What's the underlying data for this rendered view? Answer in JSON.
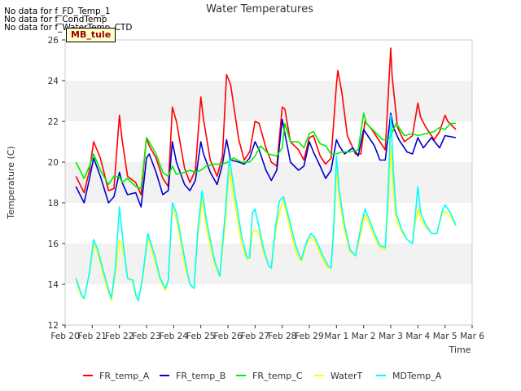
{
  "chart_data": {
    "type": "line",
    "title": "Water Temperatures",
    "xlabel": "Time",
    "ylabel": "Temperature (C)",
    "ylim": [
      12,
      26
    ],
    "xlim": [
      0,
      15
    ],
    "grid": "horizontal bands",
    "legend_position": "bottom",
    "x_ticks": [
      {
        "x": 0,
        "label": "Feb 20"
      },
      {
        "x": 1,
        "label": "Feb 21"
      },
      {
        "x": 2,
        "label": "Feb 22"
      },
      {
        "x": 3,
        "label": "Feb 23"
      },
      {
        "x": 4,
        "label": "Feb 24"
      },
      {
        "x": 5,
        "label": "Feb 25"
      },
      {
        "x": 6,
        "label": "Feb 26"
      },
      {
        "x": 7,
        "label": "Feb 27"
      },
      {
        "x": 8,
        "label": "Feb 28"
      },
      {
        "x": 9,
        "label": "Feb 29"
      },
      {
        "x": 10,
        "label": "Mar 1"
      },
      {
        "x": 11,
        "label": "Mar 2"
      },
      {
        "x": 12,
        "label": "Mar 3"
      },
      {
        "x": 13,
        "label": "Mar 4"
      },
      {
        "x": 14,
        "label": "Mar 5"
      },
      {
        "x": 15,
        "label": "Mar 6"
      }
    ],
    "y_ticks": [
      12,
      14,
      16,
      18,
      20,
      22,
      24,
      26
    ],
    "series": [
      {
        "name": "FR_temp_A",
        "color": "#ff0000",
        "x": [
          0.4,
          0.7,
          0.9,
          1.05,
          1.3,
          1.6,
          1.8,
          2.0,
          2.1,
          2.3,
          2.6,
          2.8,
          3.0,
          3.1,
          3.35,
          3.6,
          3.8,
          3.95,
          4.1,
          4.4,
          4.6,
          4.8,
          5.0,
          5.1,
          5.35,
          5.6,
          5.8,
          5.95,
          6.1,
          6.4,
          6.6,
          6.8,
          7.0,
          7.15,
          7.4,
          7.6,
          7.8,
          8.0,
          8.1,
          8.3,
          8.6,
          8.8,
          9.0,
          9.15,
          9.4,
          9.6,
          9.8,
          10.0,
          10.05,
          10.2,
          10.4,
          10.7,
          10.9,
          11.05,
          11.3,
          11.6,
          11.8,
          12.0,
          12.05,
          12.25,
          12.5,
          12.8,
          13.0,
          13.1,
          13.3,
          13.6,
          13.8,
          14.0,
          14.1,
          14.4
        ],
        "y": [
          19.3,
          18.5,
          19.6,
          21.0,
          20.2,
          18.6,
          18.7,
          22.3,
          21.1,
          19.3,
          19.0,
          18.4,
          21.2,
          20.8,
          20.2,
          19.2,
          18.8,
          22.7,
          22.0,
          19.7,
          19.0,
          19.6,
          23.2,
          22.1,
          20.1,
          19.3,
          20.3,
          24.3,
          23.8,
          21.1,
          20.1,
          20.5,
          22.0,
          21.9,
          20.7,
          20.0,
          19.8,
          22.7,
          22.6,
          21.0,
          20.6,
          20.1,
          21.2,
          21.3,
          20.3,
          19.9,
          20.2,
          23.8,
          24.5,
          23.4,
          21.3,
          20.4,
          20.4,
          22.0,
          21.6,
          21.0,
          20.6,
          25.6,
          24.2,
          21.7,
          21.0,
          21.3,
          22.9,
          22.2,
          21.7,
          21.1,
          21.5,
          22.3,
          22.0,
          21.6
        ]
      },
      {
        "name": "FR_temp_B",
        "color": "#0000cc",
        "x": [
          0.4,
          0.7,
          0.9,
          1.05,
          1.3,
          1.6,
          1.8,
          2.0,
          2.1,
          2.3,
          2.6,
          2.8,
          3.0,
          3.1,
          3.35,
          3.6,
          3.8,
          3.95,
          4.1,
          4.4,
          4.6,
          4.8,
          5.0,
          5.1,
          5.35,
          5.6,
          5.8,
          5.95,
          6.1,
          6.4,
          6.6,
          6.8,
          7.0,
          7.15,
          7.4,
          7.6,
          7.8,
          8.0,
          8.1,
          8.3,
          8.6,
          8.8,
          9.0,
          9.15,
          9.4,
          9.6,
          9.8,
          10.0,
          10.1,
          10.3,
          10.6,
          10.8,
          11.0,
          11.1,
          11.4,
          11.6,
          11.8,
          12.0,
          12.1,
          12.3,
          12.6,
          12.8,
          13.0,
          13.2,
          13.5,
          13.8,
          14.0,
          14.4
        ],
        "y": [
          18.8,
          18.0,
          19.2,
          20.2,
          19.3,
          18.0,
          18.3,
          19.5,
          19.0,
          18.4,
          18.5,
          17.8,
          20.2,
          20.4,
          19.5,
          18.4,
          18.6,
          21.0,
          20.0,
          18.9,
          18.6,
          19.1,
          21.0,
          20.4,
          19.5,
          18.9,
          19.9,
          21.1,
          20.1,
          20.0,
          19.9,
          20.2,
          21.0,
          20.6,
          19.6,
          19.1,
          19.6,
          22.1,
          21.4,
          20.0,
          19.6,
          19.8,
          21.0,
          20.5,
          19.8,
          19.2,
          19.6,
          21.1,
          20.8,
          20.4,
          20.7,
          20.3,
          21.6,
          21.4,
          20.8,
          20.1,
          20.1,
          22.4,
          21.7,
          21.1,
          20.5,
          20.4,
          21.2,
          20.7,
          21.2,
          20.7,
          21.3,
          21.2
        ]
      },
      {
        "name": "FR_temp_C",
        "color": "#00ee00",
        "x": [
          0.4,
          0.7,
          0.9,
          1.05,
          1.3,
          1.6,
          1.8,
          2.0,
          2.1,
          2.3,
          2.6,
          2.8,
          3.0,
          3.1,
          3.35,
          3.6,
          3.8,
          3.95,
          4.1,
          4.4,
          4.6,
          4.8,
          5.0,
          5.2,
          5.5,
          5.8,
          6.0,
          6.2,
          6.5,
          6.8,
          7.0,
          7.2,
          7.5,
          7.8,
          8.0,
          8.1,
          8.3,
          8.6,
          8.8,
          9.0,
          9.15,
          9.4,
          9.6,
          9.8,
          10.0,
          10.2,
          10.5,
          10.8,
          11.0,
          11.1,
          11.4,
          11.7,
          11.9,
          12.0,
          12.2,
          12.5,
          12.8,
          13.0,
          13.3,
          13.6,
          13.8,
          14.0,
          14.2,
          14.4
        ],
        "y": [
          20.0,
          19.2,
          19.8,
          20.4,
          19.6,
          18.9,
          19.3,
          19.3,
          19.0,
          19.2,
          18.8,
          18.7,
          21.2,
          21.0,
          20.4,
          19.5,
          19.3,
          19.8,
          19.4,
          19.5,
          19.6,
          19.5,
          19.6,
          19.8,
          19.9,
          19.9,
          20.0,
          20.2,
          20.0,
          20.0,
          20.3,
          20.8,
          20.4,
          20.3,
          20.7,
          21.9,
          21.0,
          21.0,
          20.7,
          21.4,
          21.5,
          20.9,
          20.8,
          20.4,
          20.4,
          20.5,
          20.5,
          20.6,
          22.4,
          21.9,
          21.5,
          21.1,
          21.1,
          21.3,
          21.9,
          21.3,
          21.4,
          21.3,
          21.4,
          21.5,
          21.7,
          21.6,
          21.9,
          21.9
        ]
      },
      {
        "name": "WaterT",
        "color": "#ffff00",
        "x": [
          0.4,
          0.6,
          0.7,
          0.9,
          1.05,
          1.2,
          1.5,
          1.7,
          1.85,
          2.0,
          2.15,
          2.3,
          2.5,
          2.6,
          2.7,
          2.85,
          3.05,
          3.3,
          3.5,
          3.7,
          3.8,
          3.95,
          4.1,
          4.4,
          4.6,
          4.75,
          4.9,
          5.05,
          5.2,
          5.5,
          5.7,
          5.9,
          6.05,
          6.2,
          6.5,
          6.7,
          6.8,
          6.9,
          7.0,
          7.15,
          7.3,
          7.5,
          7.6,
          7.75,
          7.9,
          8.05,
          8.2,
          8.5,
          8.7,
          8.9,
          9.05,
          9.2,
          9.5,
          9.7,
          9.8,
          9.9,
          10.0,
          10.1,
          10.3,
          10.5,
          10.7,
          10.9,
          11.05,
          11.2,
          11.4,
          11.6,
          11.8,
          11.9,
          12.0,
          12.1,
          12.2,
          12.4,
          12.6,
          12.8,
          12.9,
          13.0,
          13.1,
          13.3,
          13.5,
          13.7,
          13.9,
          14.0,
          14.2,
          14.4
        ],
        "y": [
          14.2,
          13.4,
          13.3,
          14.5,
          16.0,
          15.5,
          14.0,
          13.2,
          14.5,
          16.2,
          15.6,
          14.3,
          14.1,
          13.4,
          13.2,
          14.2,
          16.3,
          15.2,
          14.2,
          13.7,
          14.2,
          17.8,
          17.2,
          15.0,
          14.0,
          13.8,
          16.5,
          18.2,
          16.8,
          15.0,
          14.4,
          17.0,
          19.7,
          18.4,
          16.0,
          15.2,
          15.3,
          16.5,
          16.7,
          16.5,
          15.6,
          14.9,
          14.8,
          16.5,
          17.6,
          18.1,
          17.2,
          15.6,
          15.1,
          16.0,
          16.3,
          16.1,
          15.2,
          14.8,
          14.8,
          16.5,
          19.6,
          18.2,
          16.6,
          15.6,
          15.4,
          16.5,
          17.4,
          17.0,
          16.3,
          15.8,
          15.7,
          17.8,
          20.8,
          18.5,
          17.2,
          16.6,
          16.2,
          16.0,
          17.0,
          17.7,
          17.2,
          16.8,
          16.5,
          16.5,
          17.5,
          17.6,
          17.3,
          16.9
        ]
      },
      {
        "name": "MDTemp_A",
        "color": "#00ffff",
        "x": [
          0.4,
          0.6,
          0.7,
          0.9,
          1.05,
          1.2,
          1.5,
          1.7,
          1.85,
          2.0,
          2.15,
          2.3,
          2.5,
          2.6,
          2.7,
          2.85,
          3.05,
          3.3,
          3.5,
          3.7,
          3.8,
          3.95,
          4.1,
          4.4,
          4.6,
          4.75,
          4.9,
          5.05,
          5.2,
          5.5,
          5.7,
          5.9,
          6.05,
          6.2,
          6.5,
          6.7,
          6.8,
          6.9,
          7.0,
          7.15,
          7.3,
          7.5,
          7.6,
          7.75,
          7.9,
          8.05,
          8.2,
          8.5,
          8.7,
          8.9,
          9.05,
          9.2,
          9.5,
          9.7,
          9.8,
          9.9,
          10.0,
          10.1,
          10.3,
          10.5,
          10.7,
          10.9,
          11.05,
          11.2,
          11.4,
          11.6,
          11.8,
          11.9,
          12.0,
          12.1,
          12.2,
          12.4,
          12.6,
          12.8,
          12.9,
          13.0,
          13.1,
          13.3,
          13.5,
          13.7,
          13.9,
          14.0,
          14.2,
          14.4
        ],
        "y": [
          14.3,
          13.5,
          13.3,
          14.6,
          16.2,
          15.7,
          14.2,
          13.3,
          14.8,
          17.8,
          15.9,
          14.3,
          14.2,
          13.5,
          13.2,
          14.3,
          16.5,
          15.4,
          14.3,
          13.8,
          14.2,
          18.0,
          17.5,
          15.3,
          14.0,
          13.8,
          16.8,
          18.6,
          17.2,
          15.2,
          14.4,
          17.5,
          20.2,
          18.9,
          16.4,
          15.3,
          15.3,
          17.5,
          17.7,
          16.8,
          15.8,
          14.9,
          14.8,
          16.8,
          18.1,
          18.3,
          17.5,
          15.9,
          15.2,
          16.1,
          16.5,
          16.3,
          15.4,
          14.9,
          14.8,
          16.8,
          20.3,
          18.6,
          16.9,
          15.7,
          15.4,
          16.8,
          17.7,
          17.2,
          16.5,
          15.9,
          15.8,
          18.4,
          22.3,
          19.5,
          17.5,
          16.7,
          16.2,
          16.0,
          17.3,
          18.8,
          17.5,
          16.9,
          16.5,
          16.5,
          17.6,
          17.9,
          17.5,
          16.9
        ]
      }
    ]
  },
  "no_data_messages": [
    "No data for f_FD_Temp_1",
    "No data for f_CondTemp",
    "No data for f_WaterTemp_CTD"
  ],
  "badge": "MB_tule"
}
